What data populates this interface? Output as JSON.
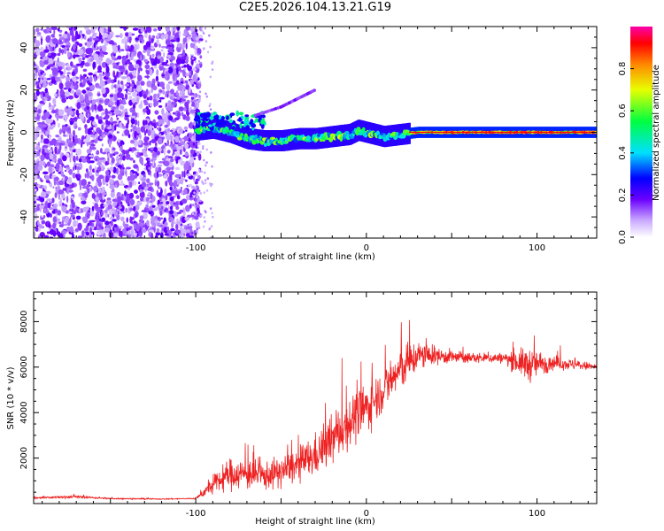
{
  "title": "C2E5.2026.104.13.21.G19",
  "chart_data": [
    {
      "type": "heatmap",
      "xlabel": "Height of straight line (km)",
      "ylabel": "Frequency (Hz)",
      "xlim": [
        -195,
        135
      ],
      "ylim": [
        -50,
        50
      ],
      "xticks": [
        -100,
        0,
        100
      ],
      "xtick_labels": [
        "-100",
        "0",
        "100"
      ],
      "yticks": [
        -40,
        -20,
        0,
        20,
        40
      ],
      "ytick_labels": [
        "-40",
        "-20",
        "0",
        "20",
        "40"
      ],
      "colorbar": {
        "label": "Normalized spectral amplitude",
        "range": [
          0,
          1
        ],
        "ticks": [
          0.0,
          0.2,
          0.4,
          0.6,
          0.8
        ],
        "tick_labels": [
          "0.0",
          "0.2",
          "0.4",
          "0.6",
          "0.8"
        ],
        "colormap": "rainbow"
      },
      "features": {
        "noise_region_x": [
          -195,
          -100
        ],
        "signal_ridge": [
          {
            "x": -100,
            "y": 1
          },
          {
            "x": -90,
            "y": 2
          },
          {
            "x": -80,
            "y": 0
          },
          {
            "x": -70,
            "y": -3
          },
          {
            "x": -60,
            "y": -4
          },
          {
            "x": -50,
            "y": -4
          },
          {
            "x": -40,
            "y": -3
          },
          {
            "x": -30,
            "y": -3
          },
          {
            "x": -20,
            "y": -2
          },
          {
            "x": -10,
            "y": -1
          },
          {
            "x": -5,
            "y": 1
          },
          {
            "x": 0,
            "y": 0
          },
          {
            "x": 10,
            "y": -2
          },
          {
            "x": 20,
            "y": -1
          },
          {
            "x": 30,
            "y": 0
          },
          {
            "x": 135,
            "y": 0
          }
        ],
        "secondary_trace": [
          {
            "x": -65,
            "y": 8
          },
          {
            "x": -50,
            "y": 12
          },
          {
            "x": -40,
            "y": 16
          },
          {
            "x": -30,
            "y": 20
          }
        ]
      }
    },
    {
      "type": "line",
      "xlabel": "Height of straight line (km)",
      "ylabel": "SNR (10 * v/v)",
      "xlim": [
        -195,
        135
      ],
      "ylim": [
        0,
        9300
      ],
      "xticks": [
        -100,
        0,
        100
      ],
      "xtick_labels": [
        "-100",
        "0",
        "100"
      ],
      "yticks": [
        2000,
        4000,
        6000,
        8000
      ],
      "ytick_labels": [
        "2000",
        "4000",
        "6000",
        "8000"
      ],
      "series": [
        {
          "name": "SNR",
          "color": "#ee2222",
          "x": [
            -195,
            -170,
            -150,
            -120,
            -100,
            -90,
            -80,
            -70,
            -60,
            -50,
            -40,
            -30,
            -20,
            -10,
            0,
            10,
            20,
            30,
            40,
            60,
            80,
            95,
            110,
            135
          ],
          "y_mean": [
            250,
            300,
            220,
            200,
            220,
            800,
            1300,
            1300,
            1200,
            1400,
            1700,
            2100,
            2800,
            3600,
            4200,
            5000,
            5900,
            6500,
            6500,
            6400,
            6400,
            6100,
            6200,
            6000
          ],
          "y_spread": [
            60,
            80,
            40,
            30,
            40,
            500,
            900,
            900,
            800,
            900,
            1000,
            1200,
            1400,
            1500,
            1400,
            1200,
            1300,
            900,
            500,
            300,
            300,
            1000,
            400,
            200
          ]
        }
      ]
    }
  ]
}
